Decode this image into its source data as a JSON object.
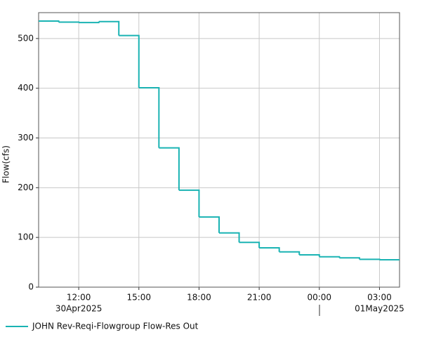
{
  "chart_data": {
    "type": "step",
    "y_label": "Flow(cfs)",
    "x": [
      "2025-04-30T10:00",
      "2025-04-30T11:00",
      "2025-04-30T12:00",
      "2025-04-30T13:00",
      "2025-04-30T14:00",
      "2025-04-30T15:00",
      "2025-04-30T16:00",
      "2025-04-30T17:00",
      "2025-04-30T18:00",
      "2025-04-30T19:00",
      "2025-04-30T20:00",
      "2025-04-30T21:00",
      "2025-04-30T22:00",
      "2025-04-30T23:00",
      "2025-05-01T00:00",
      "2025-05-01T01:00",
      "2025-05-01T02:00",
      "2025-05-01T03:00"
    ],
    "series": [
      {
        "name": "JOHN Rev-Reqi-Flowgroup Flow-Res Out",
        "color": "#1ab3b3",
        "values": [
          535,
          533,
          532,
          534,
          506,
          401,
          280,
          195,
          141,
          109,
          90,
          79,
          71,
          65,
          61,
          59,
          56,
          55
        ]
      }
    ],
    "xlim": [
      "2025-04-30T10:00",
      "2025-05-01T04:00"
    ],
    "xticks": [
      {
        "value": "2025-04-30T12:00",
        "label": "12:00"
      },
      {
        "value": "2025-04-30T15:00",
        "label": "15:00"
      },
      {
        "value": "2025-04-30T18:00",
        "label": "18:00"
      },
      {
        "value": "2025-04-30T21:00",
        "label": "21:00"
      },
      {
        "value": "2025-05-01T00:00",
        "label": "00:00"
      },
      {
        "value": "2025-05-01T03:00",
        "label": "03:00"
      }
    ],
    "date_labels": [
      {
        "value": "2025-04-30T12:00",
        "label": "30Apr2025"
      },
      {
        "value": "2025-05-01T03:00",
        "label": "01May2025"
      }
    ],
    "ylim": [
      0,
      552
    ],
    "yticks": [
      0,
      100,
      200,
      300,
      400,
      500
    ],
    "grid": true
  }
}
